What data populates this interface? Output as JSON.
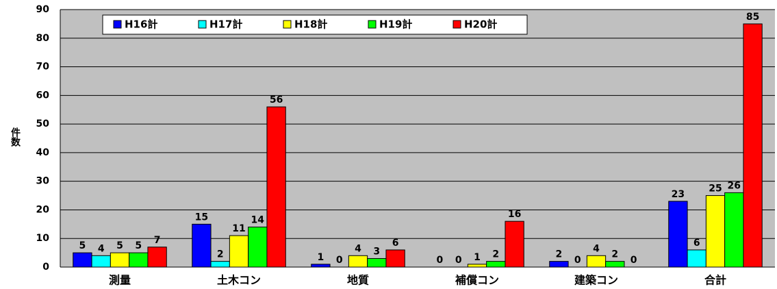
{
  "chart_data": {
    "type": "bar",
    "y_label": "件数",
    "categories": [
      "測量",
      "土木コン",
      "地質",
      "補償コン",
      "建築コン",
      "合計"
    ],
    "series": [
      {
        "name": "H16計",
        "color": "#0000ff",
        "values": [
          5,
          15,
          1,
          0,
          2,
          23
        ]
      },
      {
        "name": "H17計",
        "color": "#00ffff",
        "values": [
          4,
          2,
          0,
          0,
          0,
          6
        ]
      },
      {
        "name": "H18計",
        "color": "#ffff00",
        "values": [
          5,
          11,
          4,
          1,
          4,
          25
        ]
      },
      {
        "name": "H19計",
        "color": "#00ff00",
        "values": [
          5,
          14,
          3,
          2,
          2,
          26
        ]
      },
      {
        "name": "H20計",
        "color": "#ff0000",
        "values": [
          7,
          56,
          6,
          16,
          0,
          85
        ]
      }
    ],
    "ylim": [
      0,
      90
    ],
    "yticks": [
      0,
      10,
      20,
      30,
      40,
      50,
      60,
      70,
      80,
      90
    ],
    "grid": true,
    "legend": "top-left"
  }
}
